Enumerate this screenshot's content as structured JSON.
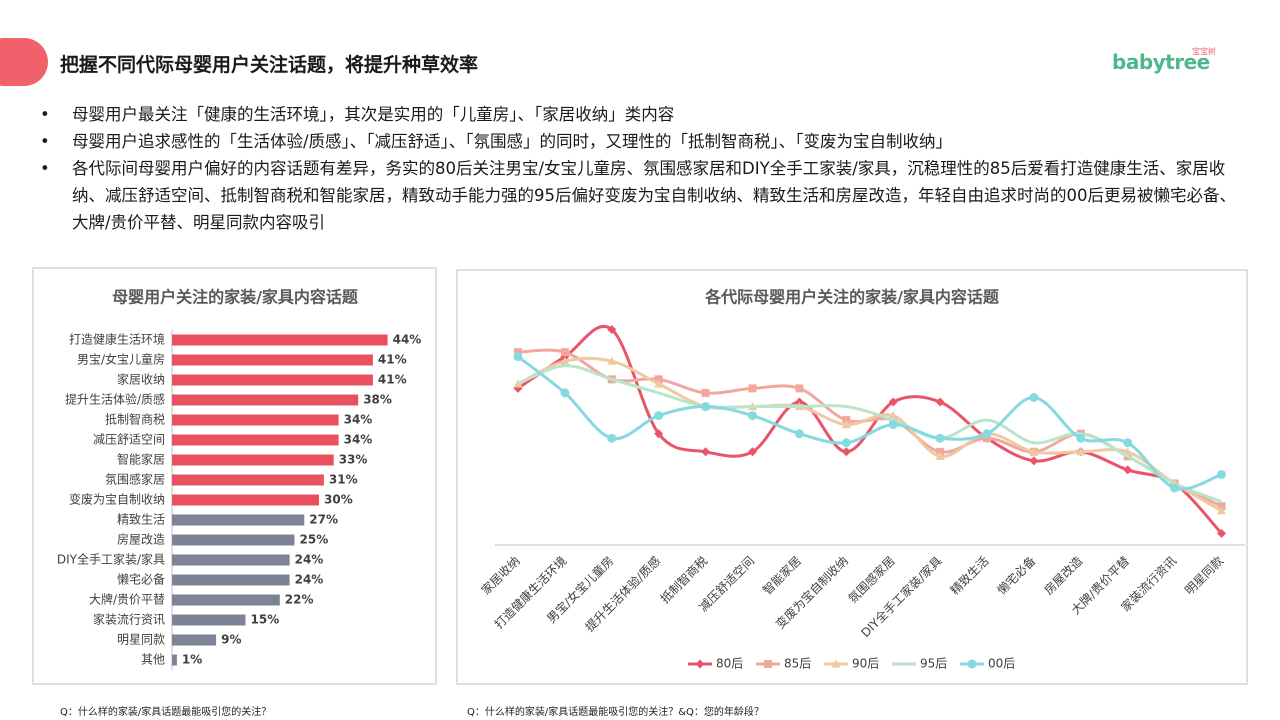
{
  "header": {
    "title": "把握不同代际母婴用户关注话题，将提升种草效率",
    "logo": "babytree",
    "logo_sub": "宝宝树"
  },
  "bullets": [
    "母婴用户最关注「健康的生活环境」，其次是实用的「儿童房」、「家居收纳」类内容",
    "母婴用户追求感性的「生活体验/质感」、「减压舒适」、「氛围感」的同时，又理性的「抵制智商税」、「变废为宝自制收纳」",
    "各代际间母婴用户偏好的内容话题有差异，务实的80后关注男宝/女宝儿童房、氛围感家居和DIY全手工家装/家具，沉稳理性的85后爱看打造健康生活、家居收纳、减压舒适空间、抵制智商税和智能家居，精致动手能力强的95后偏好变废为宝自制收纳、精致生活和房屋改造，年轻自由追求时尚的00后更易被懒宅必备、大牌/贵价平替、明星同款内容吸引"
  ],
  "notes": [
    "Q：什么样的家装/家具话题最能吸引您的关注？",
    "Q：什么样的家装/家具话题最能吸引您的关注？&Q：您的年龄段？"
  ],
  "chart_data": [
    {
      "type": "bar",
      "orientation": "horizontal",
      "title": "母婴用户关注的家装/家具内容话题",
      "categories": [
        "打造健康生活环境",
        "男宝/女宝儿童房",
        "家居收纳",
        "提升生活体验/质感",
        "抵制智商税",
        "减压舒适空间",
        "智能家居",
        "氛围感家居",
        "变废为宝自制收纳",
        "精致生活",
        "房屋改造",
        "DIY全手工家装/家具",
        "懒宅必备",
        "大牌/贵价平替",
        "家装流行资讯",
        "明星同款",
        "其他"
      ],
      "values": [
        44,
        41,
        41,
        38,
        34,
        34,
        33,
        31,
        30,
        27,
        25,
        24,
        24,
        22,
        15,
        9,
        1
      ],
      "value_labels": [
        "44%",
        "41%",
        "41%",
        "38%",
        "34%",
        "34%",
        "33%",
        "31%",
        "30%",
        "27%",
        "25%",
        "24%",
        "24%",
        "22%",
        "15%",
        "9%",
        "1%"
      ],
      "colors": [
        "#e9505f",
        "#e9505f",
        "#e9505f",
        "#e9505f",
        "#e9505f",
        "#e9505f",
        "#e9505f",
        "#e9505f",
        "#e9505f",
        "#7b8394",
        "#7b8394",
        "#7b8394",
        "#7b8394",
        "#7b8394",
        "#7b8394",
        "#7b8394",
        "#7b8394"
      ]
    },
    {
      "type": "line",
      "title": "各代际母婴用户关注的家装/家具内容话题",
      "smooth": true,
      "legend": "bottom",
      "categories": [
        "家居收纳",
        "打造健康生活环境",
        "男宝/女宝儿童房",
        "提升生活体验/质感",
        "抵制智商税",
        "减压舒适空间",
        "智能家居",
        "变废为宝自制收纳",
        "氛围感家居",
        "DIY全手工家装/家具",
        "精致生活",
        "懒宅必备",
        "房屋改造",
        "大牌/贵价平替",
        "家装流行资讯",
        "明星同款"
      ],
      "series": [
        {
          "name": "80后",
          "color": "#e8556a",
          "marker": "diamond",
          "values": [
            37,
            44,
            50,
            27,
            23,
            23,
            34,
            23,
            34,
            34,
            26,
            21,
            23,
            19,
            16,
            5
          ]
        },
        {
          "name": "85后",
          "color": "#f2a79c",
          "marker": "square",
          "values": [
            45,
            45,
            39,
            39,
            36,
            37,
            37,
            30,
            30,
            23,
            26,
            23,
            27,
            22,
            16,
            11
          ]
        },
        {
          "name": "90后",
          "color": "#efc9a2",
          "marker": "triangle",
          "values": [
            38,
            43,
            43,
            38,
            33,
            33,
            33,
            29,
            31,
            22,
            27,
            23,
            23,
            23,
            16,
            10
          ]
        },
        {
          "name": "95后",
          "color": "#b9e6c9",
          "marker": "none",
          "values": [
            38,
            42,
            39,
            36,
            33,
            33,
            33,
            33,
            30,
            26,
            30,
            25,
            27,
            22,
            16,
            12
          ]
        },
        {
          "name": "00后",
          "color": "#86d9de",
          "marker": "circle",
          "values": [
            44,
            36,
            26,
            31,
            33,
            31,
            27,
            25,
            29,
            26,
            27,
            35,
            26,
            25,
            15,
            18
          ]
        }
      ]
    }
  ]
}
